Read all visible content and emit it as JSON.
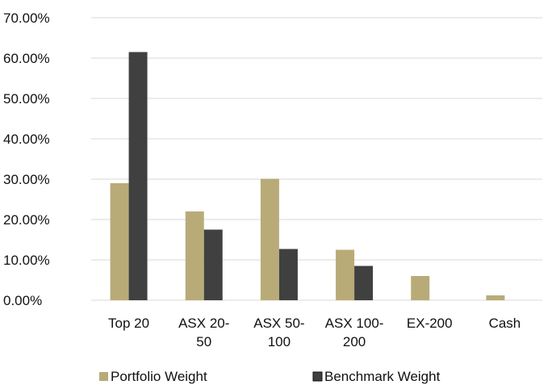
{
  "chart_data": {
    "type": "bar",
    "categories": [
      [
        "Top 20"
      ],
      [
        "ASX 20-",
        "50"
      ],
      [
        "ASX 50-",
        "100"
      ],
      [
        "ASX 100-",
        "200"
      ],
      [
        "EX-200"
      ],
      [
        "Cash"
      ]
    ],
    "series": [
      {
        "name": "Portfolio Weight",
        "values": [
          29.0,
          22.0,
          30.1,
          12.5,
          6.0,
          1.2
        ],
        "color": "#b8ab78"
      },
      {
        "name": "Benchmark Weight",
        "values": [
          61.5,
          17.5,
          12.7,
          8.5,
          0,
          0
        ],
        "color": "#404040"
      }
    ],
    "y_ticks": [
      "0.00%",
      "10.00%",
      "20.00%",
      "30.00%",
      "40.00%",
      "50.00%",
      "60.00%",
      "70.00%"
    ],
    "ylim": [
      0,
      70
    ],
    "title": "",
    "xlabel": "",
    "ylabel": "",
    "grid": true,
    "legend_position": "bottom"
  }
}
